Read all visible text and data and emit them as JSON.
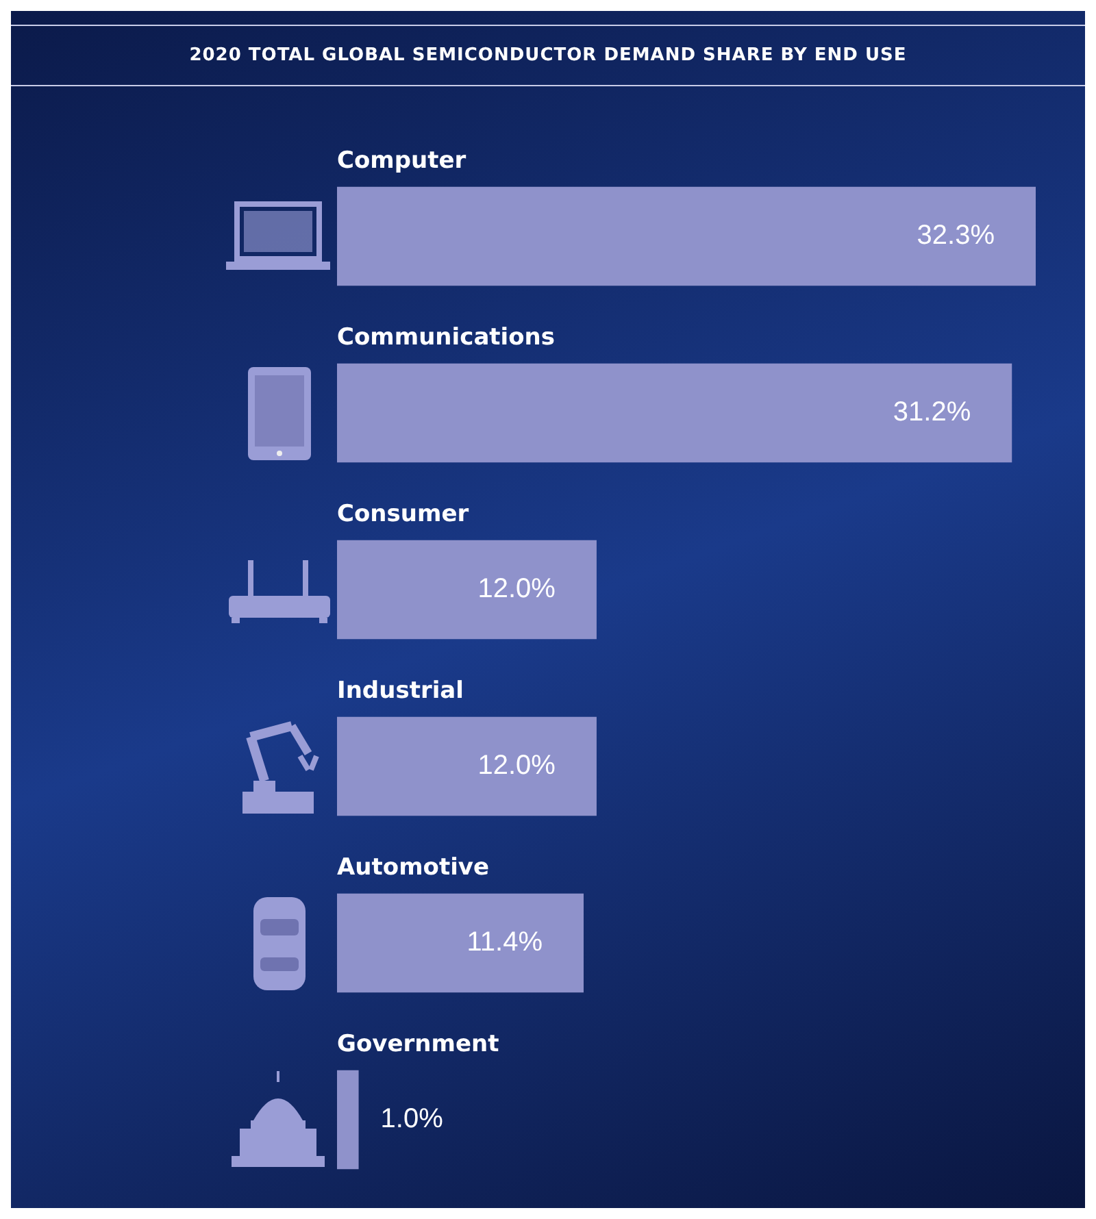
{
  "chart_data": {
    "type": "bar",
    "orientation": "horizontal",
    "title": "2020 TOTAL GLOBAL SEMICONDUCTOR DEMAND SHARE BY END USE",
    "categories": [
      "Computer",
      "Communications",
      "Consumer",
      "Industrial",
      "Automotive",
      "Government"
    ],
    "values": [
      32.3,
      31.2,
      12.0,
      12.0,
      11.4,
      1.0
    ],
    "value_labels": [
      "32.3%",
      "31.2%",
      "12.0%",
      "12.0%",
      "11.4%",
      "1.0%"
    ],
    "color": "#8f92cb",
    "legend": false
  }
}
